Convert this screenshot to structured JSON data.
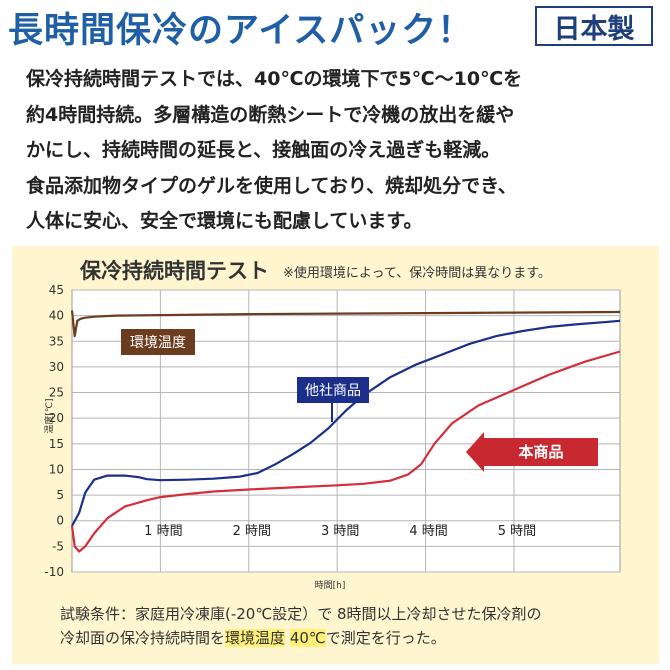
{
  "header": {
    "title": "長時間保冷のアイスパック！",
    "badge": "日本製"
  },
  "intro": [
    "保冷持続時間テストでは、40℃の環境下で5℃～10℃を",
    "約4時間持続。多層構造の断熱シートで冷機の放出を緩や",
    "かにし、持続時間の延長と、接触面の冷え過ぎも軽減。",
    "食品添加物タイプのゲルを使用しており、焼却処分でき、",
    "人体に安心、安全で環境にも配慮しています。"
  ],
  "chart_data": {
    "type": "line",
    "title": "保冷持続時間テスト",
    "note": "※使用環境によって、保冷時間は異なります。",
    "xlabel": "時間[h]",
    "ylabel": "温度[℃]",
    "xlim": [
      0,
      6.2
    ],
    "ylim": [
      -10,
      45
    ],
    "yticks": [
      -10,
      -5,
      0,
      5,
      10,
      15,
      20,
      25,
      30,
      35,
      40,
      45
    ],
    "xticks": [
      1,
      2,
      3,
      4,
      5
    ],
    "xtick_labels": [
      "1 時間",
      "2 時間",
      "3 時間",
      "4 時間",
      "5 時間"
    ],
    "series": [
      {
        "name": "環境温度",
        "color": "#6b3d1e",
        "x": [
          0,
          0.03,
          0.06,
          0.1,
          0.15,
          0.25,
          0.5,
          1,
          2,
          3,
          4,
          5,
          6.2
        ],
        "y": [
          41,
          36,
          39,
          39.4,
          39.6,
          39.8,
          40,
          40.1,
          40.3,
          40.4,
          40.5,
          40.6,
          40.7
        ]
      },
      {
        "name": "他社商品",
        "color": "#1b2f8a",
        "x": [
          0,
          0.08,
          0.15,
          0.25,
          0.4,
          0.6,
          0.75,
          0.85,
          1,
          1.3,
          1.6,
          1.9,
          2.1,
          2.3,
          2.5,
          2.7,
          2.9,
          3.1,
          3.3,
          3.6,
          3.9,
          4.2,
          4.5,
          4.8,
          5.1,
          5.4,
          5.7,
          6.0,
          6.2
        ],
        "y": [
          -1,
          1.5,
          5.5,
          8,
          8.8,
          8.8,
          8.5,
          8.1,
          7.9,
          8,
          8.2,
          8.6,
          9.3,
          11,
          13,
          15.2,
          18,
          21.5,
          24.5,
          28,
          30.5,
          32.5,
          34.5,
          36,
          37,
          37.8,
          38.3,
          38.7,
          39
        ]
      },
      {
        "name": "本商品",
        "color": "#d42e3a",
        "x": [
          0,
          0.03,
          0.08,
          0.15,
          0.25,
          0.4,
          0.6,
          0.85,
          1,
          1.3,
          1.6,
          2,
          2.5,
          3,
          3.3,
          3.6,
          3.8,
          3.95,
          4.1,
          4.3,
          4.6,
          5,
          5.4,
          5.8,
          6.2
        ],
        "y": [
          -1,
          -5,
          -6,
          -5,
          -2.5,
          0.5,
          2.8,
          4,
          4.6,
          5.2,
          5.7,
          6.1,
          6.5,
          6.9,
          7.2,
          7.8,
          9,
          11,
          15,
          19,
          22.5,
          25.5,
          28.5,
          31,
          33
        ]
      }
    ],
    "annotations": {
      "environment": "環境温度",
      "competitor": "他社商品",
      "product": "本商品"
    }
  },
  "footer": {
    "line1": "試験条件：家庭用冷凍庫(-20℃設定）で 8時間以上冷却させた保冷剤の",
    "line2_pre": "冷却面の保冷持続時間を",
    "line2_hl1": "環境温度",
    "line2_hl2": "40℃",
    "line2_post": "で測定を行った。"
  }
}
